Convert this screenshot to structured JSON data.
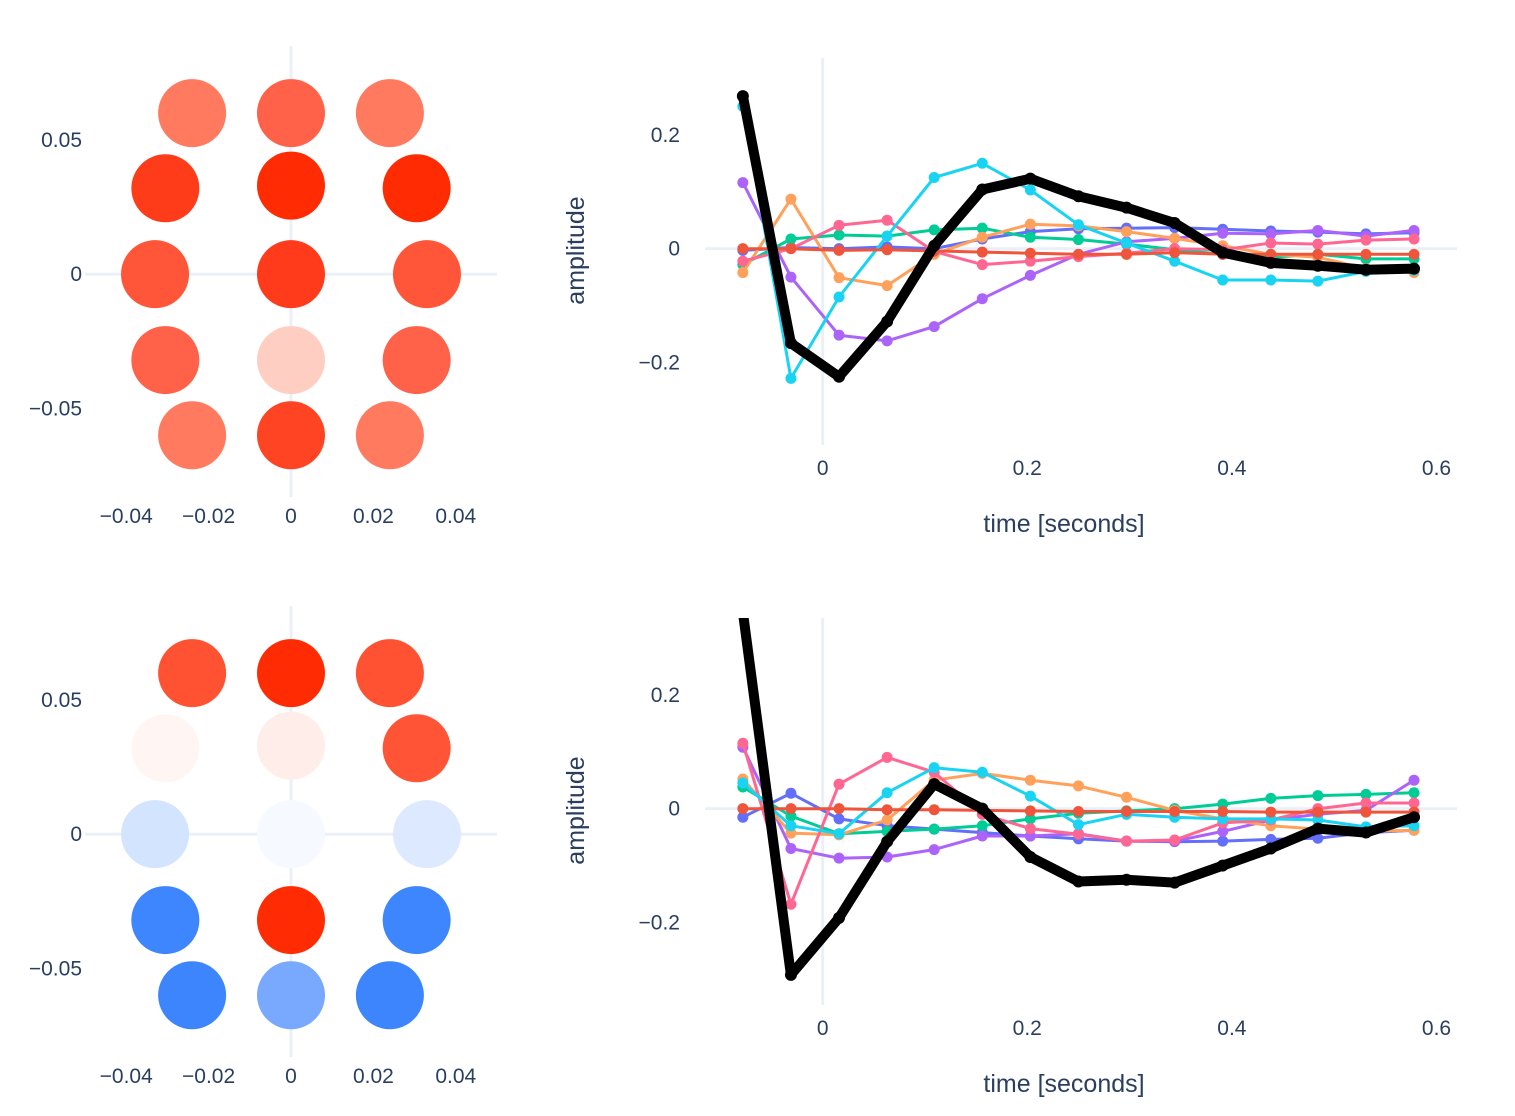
{
  "chart_data": [
    {
      "type": "scatter",
      "subtype": "sensor-topomap",
      "xlim": [
        -0.05,
        0.05
      ],
      "ylim": [
        -0.083,
        0.085
      ],
      "x_ticks": [
        {
          "v": -0.04,
          "label": "−0.04"
        },
        {
          "v": -0.02,
          "label": "−0.02"
        },
        {
          "v": 0,
          "label": "0"
        },
        {
          "v": 0.02,
          "label": "0.02"
        },
        {
          "v": 0.04,
          "label": "0.04"
        }
      ],
      "y_ticks": [
        {
          "v": 0.05,
          "label": "0.05"
        },
        {
          "v": 0,
          "label": "0"
        },
        {
          "v": -0.05,
          "label": "−0.05"
        }
      ],
      "points": [
        {
          "x": -0.024,
          "y": 0.06,
          "color": "#ff7a5f"
        },
        {
          "x": 0.0,
          "y": 0.06,
          "color": "#ff6249"
        },
        {
          "x": 0.024,
          "y": 0.06,
          "color": "#ff7a5f"
        },
        {
          "x": -0.0305,
          "y": 0.032,
          "color": "#ff3c1a"
        },
        {
          "x": 0.0,
          "y": 0.033,
          "color": "#ff2b03"
        },
        {
          "x": 0.0305,
          "y": 0.032,
          "color": "#ff2b03"
        },
        {
          "x": -0.033,
          "y": 0.0,
          "color": "#ff5538"
        },
        {
          "x": 0.0,
          "y": 0.0,
          "color": "#ff3b1b"
        },
        {
          "x": 0.033,
          "y": 0.0,
          "color": "#ff5538"
        },
        {
          "x": -0.0305,
          "y": -0.032,
          "color": "#ff6248"
        },
        {
          "x": 0.0,
          "y": -0.032,
          "color": "#ffcec2"
        },
        {
          "x": 0.0305,
          "y": -0.032,
          "color": "#ff6248"
        },
        {
          "x": -0.024,
          "y": -0.06,
          "color": "#ff7a5f"
        },
        {
          "x": 0.0,
          "y": -0.06,
          "color": "#ff4424"
        },
        {
          "x": 0.024,
          "y": -0.06,
          "color": "#ff7a5f"
        }
      ]
    },
    {
      "type": "line",
      "xlabel": "time [seconds]",
      "ylabel": "amplitude",
      "xlim": [
        -0.115,
        0.62
      ],
      "ylim": [
        -0.345,
        0.335
      ],
      "x_ticks": [
        {
          "v": 0,
          "label": "0"
        },
        {
          "v": 0.2,
          "label": "0.2"
        },
        {
          "v": 0.4,
          "label": "0.4"
        },
        {
          "v": 0.6,
          "label": "0.6"
        }
      ],
      "y_ticks": [
        {
          "v": 0.2,
          "label": "0.2"
        },
        {
          "v": 0,
          "label": "0"
        },
        {
          "v": -0.2,
          "label": "−0.2"
        }
      ],
      "x": [
        -0.078,
        -0.031,
        0.016,
        0.063,
        0.109,
        0.156,
        0.203,
        0.25,
        0.297,
        0.344,
        0.391,
        0.438,
        0.484,
        0.531,
        0.578
      ],
      "series": [
        {
          "color": "#636efa",
          "values": [
            -0.003,
            0.002,
            0.0,
            0.003,
            0.0,
            0.017,
            0.03,
            0.035,
            0.036,
            0.037,
            0.034,
            0.031,
            0.029,
            0.026,
            0.028
          ]
        },
        {
          "color": "#00cc96",
          "values": [
            -0.028,
            0.017,
            0.024,
            0.022,
            0.033,
            0.036,
            0.02,
            0.016,
            0.008,
            -0.002,
            -0.01,
            -0.015,
            -0.01,
            -0.018,
            -0.018
          ]
        },
        {
          "color": "#ab63fa",
          "values": [
            0.116,
            -0.05,
            -0.152,
            -0.162,
            -0.137,
            -0.088,
            -0.047,
            -0.01,
            0.012,
            0.018,
            0.027,
            0.026,
            0.032,
            0.022,
            0.032
          ]
        },
        {
          "color": "#ffa15a",
          "values": [
            -0.042,
            0.087,
            -0.051,
            -0.065,
            -0.01,
            0.02,
            0.043,
            0.04,
            0.03,
            0.018,
            0.005,
            -0.01,
            -0.015,
            -0.035,
            -0.042
          ]
        },
        {
          "color": "#ff6692",
          "values": [
            -0.022,
            0.0,
            0.041,
            0.05,
            -0.005,
            -0.028,
            -0.022,
            -0.014,
            -0.008,
            0.0,
            -0.002,
            0.01,
            0.008,
            0.015,
            0.017
          ]
        },
        {
          "color": "#19d3f3",
          "values": [
            0.25,
            -0.228,
            -0.085,
            0.022,
            0.125,
            0.15,
            0.103,
            0.042,
            0.01,
            -0.022,
            -0.055,
            -0.055,
            -0.057,
            -0.04,
            -0.038
          ]
        },
        {
          "color": "#ef553b",
          "values": [
            0.0,
            0.0,
            -0.003,
            -0.002,
            -0.004,
            -0.006,
            -0.008,
            -0.01,
            -0.01,
            -0.007,
            -0.01,
            -0.01,
            -0.01,
            -0.01,
            -0.01
          ]
        },
        {
          "color": "#000000",
          "emphasis": true,
          "values": [
            0.268,
            -0.166,
            -0.225,
            -0.128,
            0.005,
            0.104,
            0.123,
            0.092,
            0.072,
            0.045,
            -0.007,
            -0.025,
            -0.03,
            -0.037,
            -0.035
          ]
        }
      ]
    },
    {
      "type": "scatter",
      "subtype": "sensor-topomap",
      "xlim": [
        -0.05,
        0.05
      ],
      "ylim": [
        -0.083,
        0.085
      ],
      "x_ticks": [
        {
          "v": -0.04,
          "label": "−0.04"
        },
        {
          "v": -0.02,
          "label": "−0.02"
        },
        {
          "v": 0,
          "label": "0"
        },
        {
          "v": 0.02,
          "label": "0.02"
        },
        {
          "v": 0.04,
          "label": "0.04"
        }
      ],
      "y_ticks": [
        {
          "v": 0.05,
          "label": "0.05"
        },
        {
          "v": 0,
          "label": "0"
        },
        {
          "v": -0.05,
          "label": "−0.05"
        }
      ],
      "points": [
        {
          "x": -0.024,
          "y": 0.06,
          "color": "#ff5233"
        },
        {
          "x": 0.0,
          "y": 0.06,
          "color": "#ff2b03"
        },
        {
          "x": 0.024,
          "y": 0.06,
          "color": "#ff5233"
        },
        {
          "x": -0.0305,
          "y": 0.032,
          "color": "#fff5f3"
        },
        {
          "x": 0.0,
          "y": 0.033,
          "color": "#ffede9"
        },
        {
          "x": 0.0305,
          "y": 0.032,
          "color": "#ff5536"
        },
        {
          "x": -0.033,
          "y": 0.0,
          "color": "#d3e4ff"
        },
        {
          "x": 0.0,
          "y": 0.0,
          "color": "#f6f9ff"
        },
        {
          "x": 0.033,
          "y": 0.0,
          "color": "#dce9ff"
        },
        {
          "x": -0.0305,
          "y": -0.032,
          "color": "#3e86fd"
        },
        {
          "x": 0.0,
          "y": -0.032,
          "color": "#ff2b03"
        },
        {
          "x": 0.0305,
          "y": -0.032,
          "color": "#3e86fd"
        },
        {
          "x": -0.024,
          "y": -0.06,
          "color": "#3c85fd"
        },
        {
          "x": 0.0,
          "y": -0.06,
          "color": "#78a9ff"
        },
        {
          "x": 0.024,
          "y": -0.06,
          "color": "#3c85fd"
        }
      ]
    },
    {
      "type": "line",
      "xlabel": "time [seconds]",
      "ylabel": "amplitude",
      "xlim": [
        -0.115,
        0.62
      ],
      "ylim": [
        -0.345,
        0.335
      ],
      "x_ticks": [
        {
          "v": 0,
          "label": "0"
        },
        {
          "v": 0.2,
          "label": "0.2"
        },
        {
          "v": 0.4,
          "label": "0.4"
        },
        {
          "v": 0.6,
          "label": "0.6"
        }
      ],
      "y_ticks": [
        {
          "v": 0.2,
          "label": "0.2"
        },
        {
          "v": 0,
          "label": "0"
        },
        {
          "v": -0.2,
          "label": "−0.2"
        }
      ],
      "x": [
        -0.078,
        -0.031,
        0.016,
        0.063,
        0.109,
        0.156,
        0.203,
        0.25,
        0.297,
        0.344,
        0.391,
        0.438,
        0.484,
        0.531,
        0.578
      ],
      "series": [
        {
          "color": "#636efa",
          "values": [
            -0.015,
            0.027,
            -0.018,
            -0.03,
            -0.036,
            -0.042,
            -0.048,
            -0.053,
            -0.057,
            -0.058,
            -0.057,
            -0.054,
            -0.052,
            -0.042,
            -0.038
          ]
        },
        {
          "color": "#00cc96",
          "values": [
            0.038,
            -0.013,
            -0.044,
            -0.04,
            -0.036,
            -0.03,
            -0.018,
            -0.008,
            -0.004,
            0.0,
            0.008,
            0.018,
            0.023,
            0.025,
            0.028
          ]
        },
        {
          "color": "#ab63fa",
          "values": [
            0.108,
            -0.07,
            -0.087,
            -0.085,
            -0.072,
            -0.048,
            -0.048,
            -0.044,
            -0.057,
            -0.057,
            -0.04,
            -0.02,
            -0.01,
            -0.003,
            0.05
          ]
        },
        {
          "color": "#ffa15a",
          "values": [
            0.052,
            -0.043,
            -0.046,
            -0.02,
            0.05,
            0.062,
            0.05,
            0.04,
            0.02,
            -0.003,
            -0.018,
            -0.03,
            -0.036,
            -0.04,
            -0.038
          ]
        },
        {
          "color": "#ff6692",
          "values": [
            0.115,
            -0.168,
            0.043,
            0.09,
            0.064,
            -0.01,
            -0.035,
            -0.045,
            -0.057,
            -0.055,
            -0.025,
            -0.02,
            0.0,
            0.01,
            0.01
          ]
        },
        {
          "color": "#19d3f3",
          "values": [
            0.045,
            -0.03,
            -0.044,
            0.028,
            0.072,
            0.064,
            0.022,
            -0.028,
            -0.01,
            -0.015,
            -0.018,
            -0.018,
            -0.02,
            -0.032,
            -0.03
          ]
        },
        {
          "color": "#ef553b",
          "values": [
            0.0,
            0.0,
            0.0,
            -0.002,
            -0.002,
            -0.003,
            -0.004,
            -0.005,
            -0.005,
            -0.005,
            -0.005,
            -0.006,
            -0.006,
            -0.006,
            -0.006
          ]
        },
        {
          "color": "#000000",
          "emphasis": true,
          "values": [
            0.345,
            -0.292,
            -0.192,
            -0.058,
            0.043,
            0.0,
            -0.085,
            -0.128,
            -0.125,
            -0.13,
            -0.1,
            -0.07,
            -0.035,
            -0.042,
            -0.015
          ]
        }
      ]
    }
  ]
}
